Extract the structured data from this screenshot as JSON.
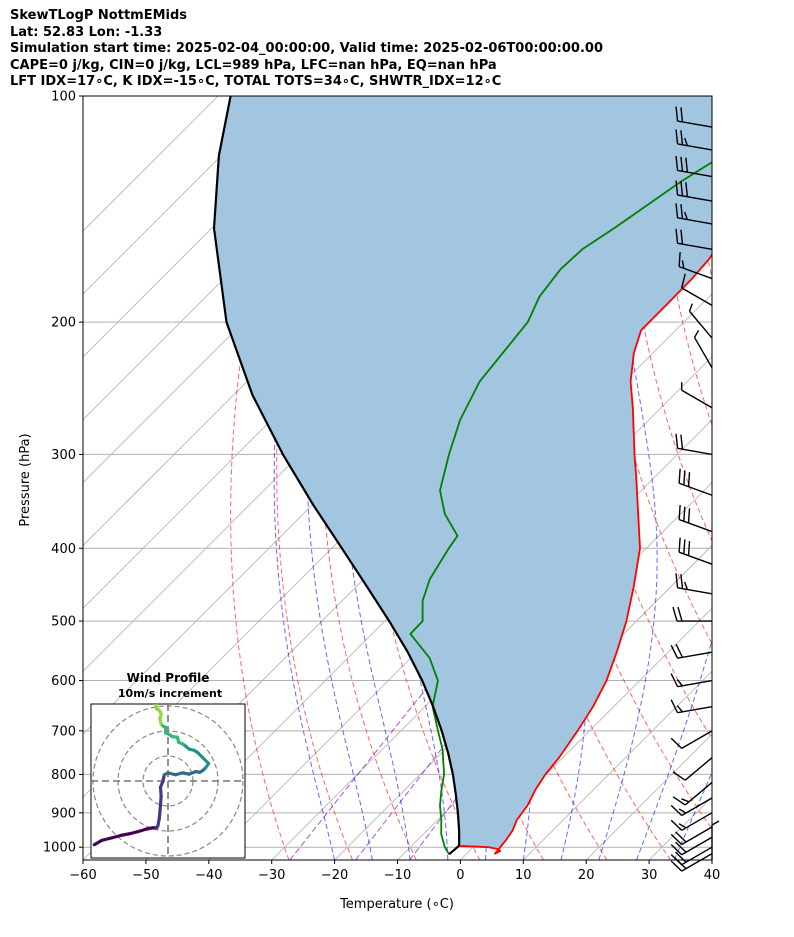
{
  "header": {
    "line1": "SkewTLogP NottmEMids",
    "line2": "Lat: 52.83   Lon: -1.33",
    "line3": "Simulation start time: 2025-02-04_00:00:00, Valid time: 2025-02-06T00:00:00.00",
    "line4": "CAPE=0 j/kg, CIN=0 j/kg, LCL=989 hPa, LFC=nan hPa, EQ=nan hPa",
    "line5": "LFT IDX=17∘C, K IDX=-15∘C, TOTAL TOTS=34∘C, SHWTR_IDX=12∘C"
  },
  "chart_data": {
    "type": "line",
    "xlabel": "Temperature (∘C)",
    "ylabel": "Pressure (hPa)",
    "xlim": [
      -60,
      40
    ],
    "ylim": [
      1040,
      100
    ],
    "yscale": "log",
    "skew": 45,
    "grid": true,
    "x_ticks": [
      -60,
      -50,
      -40,
      -30,
      -20,
      -10,
      0,
      10,
      20,
      30,
      40
    ],
    "y_ticks": [
      100,
      200,
      300,
      400,
      500,
      600,
      700,
      800,
      900,
      1000
    ],
    "series": [
      {
        "color": "#ff0000",
        "role": "temperature",
        "points": [
          [
            996,
            -2.5
          ],
          [
            1000,
            2.5
          ],
          [
            1006,
            4.4
          ],
          [
            1012,
            4.9
          ],
          [
            1020,
            4.5
          ],
          [
            980,
            4.1
          ],
          [
            950,
            3.6
          ],
          [
            920,
            2.6
          ],
          [
            880,
            2.0
          ],
          [
            840,
            0.8
          ],
          [
            800,
            -0.1
          ],
          [
            760,
            -0.6
          ],
          [
            700,
            -1.9
          ],
          [
            650,
            -3.3
          ],
          [
            600,
            -5.3
          ],
          [
            550,
            -8.2
          ],
          [
            500,
            -11.6
          ],
          [
            450,
            -15.9
          ],
          [
            400,
            -21.0
          ],
          [
            350,
            -28.3
          ],
          [
            320,
            -33.2
          ],
          [
            300,
            -36.8
          ],
          [
            280,
            -40.5
          ],
          [
            260,
            -44.5
          ],
          [
            240,
            -49.0
          ],
          [
            220,
            -53.0
          ],
          [
            205,
            -55.5
          ],
          [
            190,
            -55.5
          ],
          [
            175,
            -55.6
          ],
          [
            165,
            -56.0
          ],
          [
            150,
            -57.5
          ],
          [
            140,
            -58.2
          ],
          [
            130,
            -58.8
          ],
          [
            118,
            -59.5
          ],
          [
            108,
            -60.5
          ],
          [
            100,
            -62.0
          ]
        ]
      },
      {
        "color": "#008000",
        "role": "dewpoint",
        "points": [
          [
            1022,
            -2.7
          ],
          [
            1000,
            -4.5
          ],
          [
            960,
            -7.2
          ],
          [
            920,
            -9.4
          ],
          [
            880,
            -11.9
          ],
          [
            840,
            -14.1
          ],
          [
            800,
            -16.2
          ],
          [
            740,
            -20.5
          ],
          [
            700,
            -24.1
          ],
          [
            650,
            -28.8
          ],
          [
            600,
            -32.1
          ],
          [
            560,
            -37.0
          ],
          [
            520,
            -43.9
          ],
          [
            500,
            -44.0
          ],
          [
            470,
            -47.2
          ],
          [
            440,
            -49.5
          ],
          [
            400,
            -51.4
          ],
          [
            385,
            -52.0
          ],
          [
            360,
            -57.5
          ],
          [
            335,
            -62.0
          ],
          [
            300,
            -66.3
          ],
          [
            270,
            -70.0
          ],
          [
            240,
            -73.0
          ],
          [
            200,
            -74.8
          ],
          [
            185,
            -77.0
          ],
          [
            170,
            -78.0
          ],
          [
            160,
            -77.7
          ],
          [
            150,
            -76.0
          ],
          [
            130,
            -72.8
          ],
          [
            115,
            -69.0
          ],
          [
            100,
            -65.0
          ]
        ]
      },
      {
        "color": "#000000",
        "role": "parcel",
        "points": [
          [
            1022,
            -2.7
          ],
          [
            996,
            -2.5
          ],
          [
            989,
            -2.8
          ],
          [
            950,
            -4.9
          ],
          [
            900,
            -7.9
          ],
          [
            850,
            -11.2
          ],
          [
            800,
            -14.8
          ],
          [
            750,
            -18.9
          ],
          [
            700,
            -23.5
          ],
          [
            650,
            -28.7
          ],
          [
            600,
            -34.6
          ],
          [
            550,
            -41.4
          ],
          [
            500,
            -49.3
          ],
          [
            450,
            -58.3
          ],
          [
            400,
            -68.4
          ],
          [
            350,
            -79.9
          ],
          [
            300,
            -92.7
          ],
          [
            250,
            -107.0
          ],
          [
            200,
            -122.7
          ],
          [
            150,
            -139.6
          ],
          [
            120,
            -150.4
          ],
          [
            100,
            -158.0
          ]
        ]
      }
    ],
    "wind_barbs": {
      "pressures": [
        1040,
        1020,
        1000,
        970,
        940,
        900,
        860,
        820,
        760,
        700,
        650,
        600,
        550,
        500,
        460,
        420,
        380,
        340,
        300,
        260,
        230,
        210,
        190,
        175,
        160,
        148,
        138,
        128,
        118,
        110
      ],
      "speed_kt": [
        5,
        20,
        20,
        20,
        20,
        15,
        15,
        15,
        10,
        10,
        15,
        15,
        20,
        20,
        25,
        30,
        30,
        30,
        20,
        5,
        5,
        5,
        10,
        15,
        20,
        25,
        30,
        30,
        25,
        20
      ],
      "direction_deg": [
        0,
        240,
        240,
        240,
        240,
        240,
        240,
        230,
        230,
        240,
        260,
        260,
        260,
        270,
        280,
        290,
        290,
        290,
        280,
        300,
        330,
        320,
        300,
        290,
        280,
        280,
        280,
        280,
        280,
        280
      ]
    },
    "hodograph": {
      "title": "Wind Profile",
      "subtitle": "10m/s increment",
      "u": [
        -11.8,
        -10.6,
        -9.0,
        -7.5,
        -6.0,
        -4.8,
        -3.5,
        -2.5,
        -1.8,
        -1.6,
        -1.4,
        -1.3,
        -1.2,
        -1.1,
        -1.2,
        -0.8,
        -0.6,
        0.0,
        1.2,
        2.3,
        3.4,
        4.4,
        5.1,
        5.6,
        6.0,
        6.5,
        5.7,
        4.8,
        4.2,
        3.4,
        2.9,
        2.4,
        1.7,
        1.5,
        0.7,
        0.1,
        -0.4,
        -0.4,
        -0.8,
        -1.1,
        -1.2,
        -1.3,
        -1.1,
        -1.2,
        -1.6,
        -1.8,
        -1.9,
        -2.0,
        -2.1,
        -1.5,
        -1.2,
        -1.0,
        -0.8,
        -0.5,
        -0.2
      ],
      "v": [
        -10.2,
        -9.5,
        -9.1,
        -8.7,
        -8.4,
        -8.1,
        -7.7,
        -7.5,
        -7.5,
        -7.1,
        -6.0,
        -5.0,
        -3.8,
        -2.4,
        -1.0,
        0.0,
        1.0,
        1.3,
        1.0,
        1.3,
        1.1,
        1.5,
        1.4,
        1.7,
        2.1,
        2.8,
        3.6,
        4.5,
        4.9,
        5.1,
        5.5,
        5.9,
        6.2,
        7.0,
        7.1,
        7.5,
        7.7,
        8.6,
        8.8,
        9.1,
        9.6,
        10.0,
        10.6,
        11.0,
        11.5,
        11.5,
        12.0,
        12.6,
        13.3,
        13.8,
        14.1,
        14.3,
        14.1,
        14.4,
        14.3
      ],
      "colormap": [
        "#440154",
        "#443983",
        "#31688e",
        "#21918c",
        "#35b779",
        "#90d743",
        "#fde725"
      ]
    },
    "colors": {
      "isotherm": "#b0b0b0",
      "dry_adiabat": "#ff0000",
      "moist_adiabat": "#0000ff",
      "mixing_ratio": "#9400d3",
      "shade": "#a2c5e0"
    }
  }
}
